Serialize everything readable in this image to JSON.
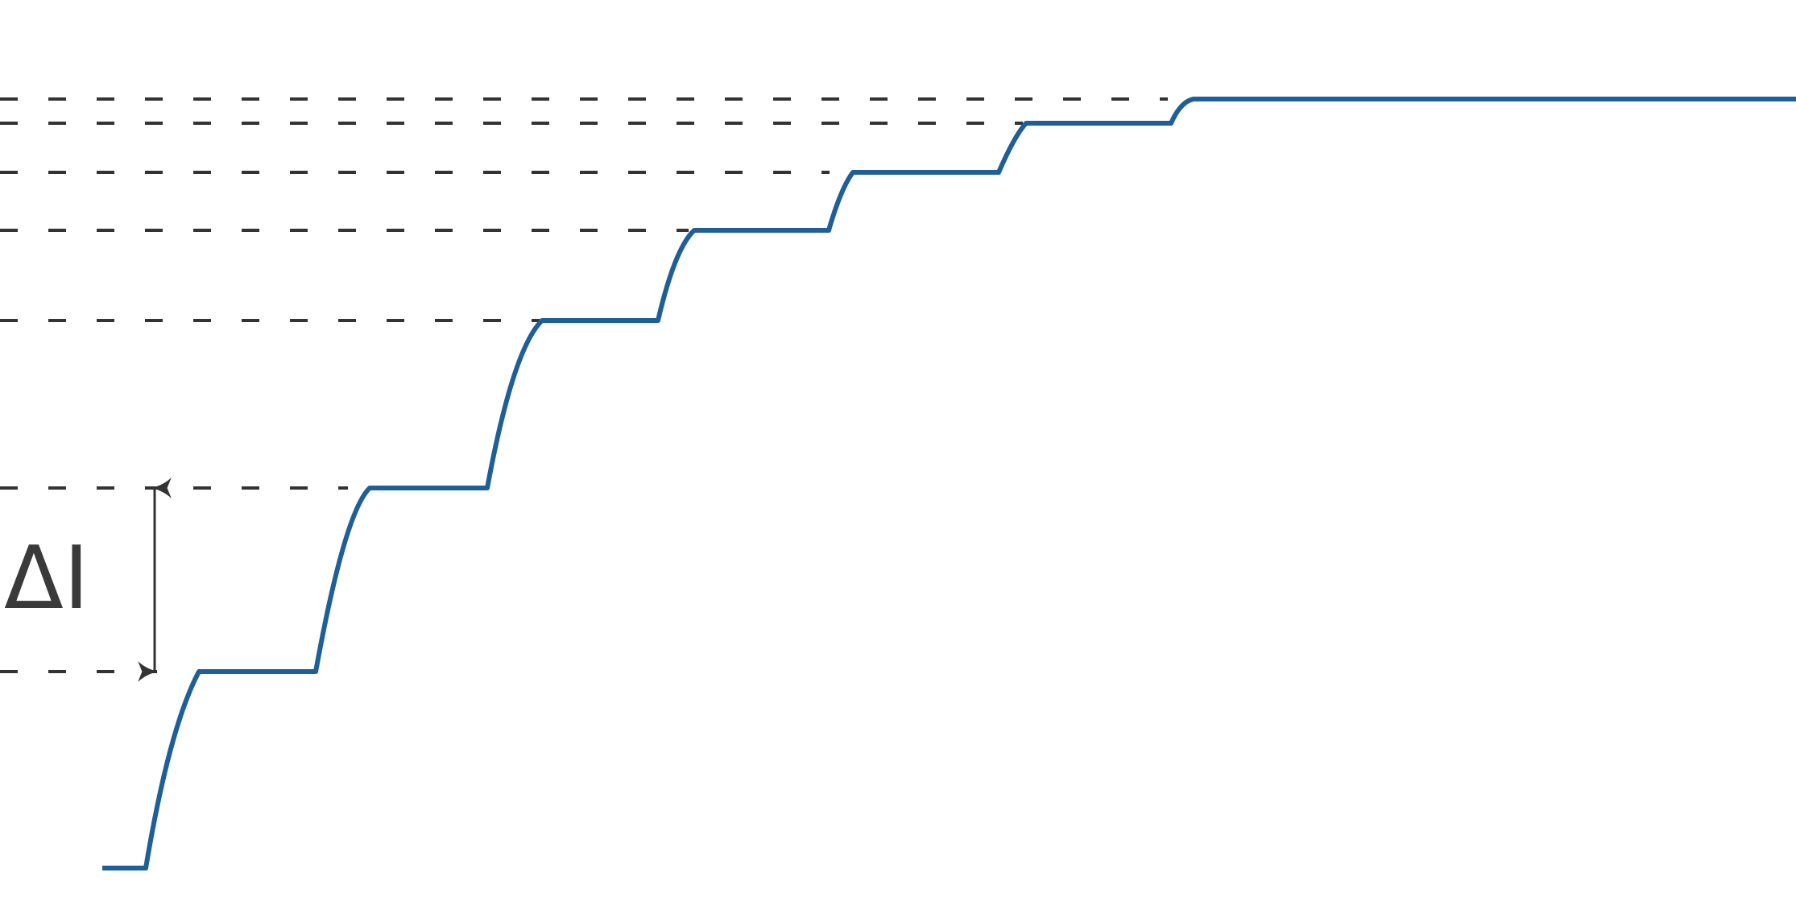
{
  "diagram": {
    "label_text": "ΔI",
    "colors": {
      "curve": "#1f5f99",
      "guides": "#333333",
      "label": "#3a3a3a"
    },
    "icon": "double-headed-arrow"
  }
}
